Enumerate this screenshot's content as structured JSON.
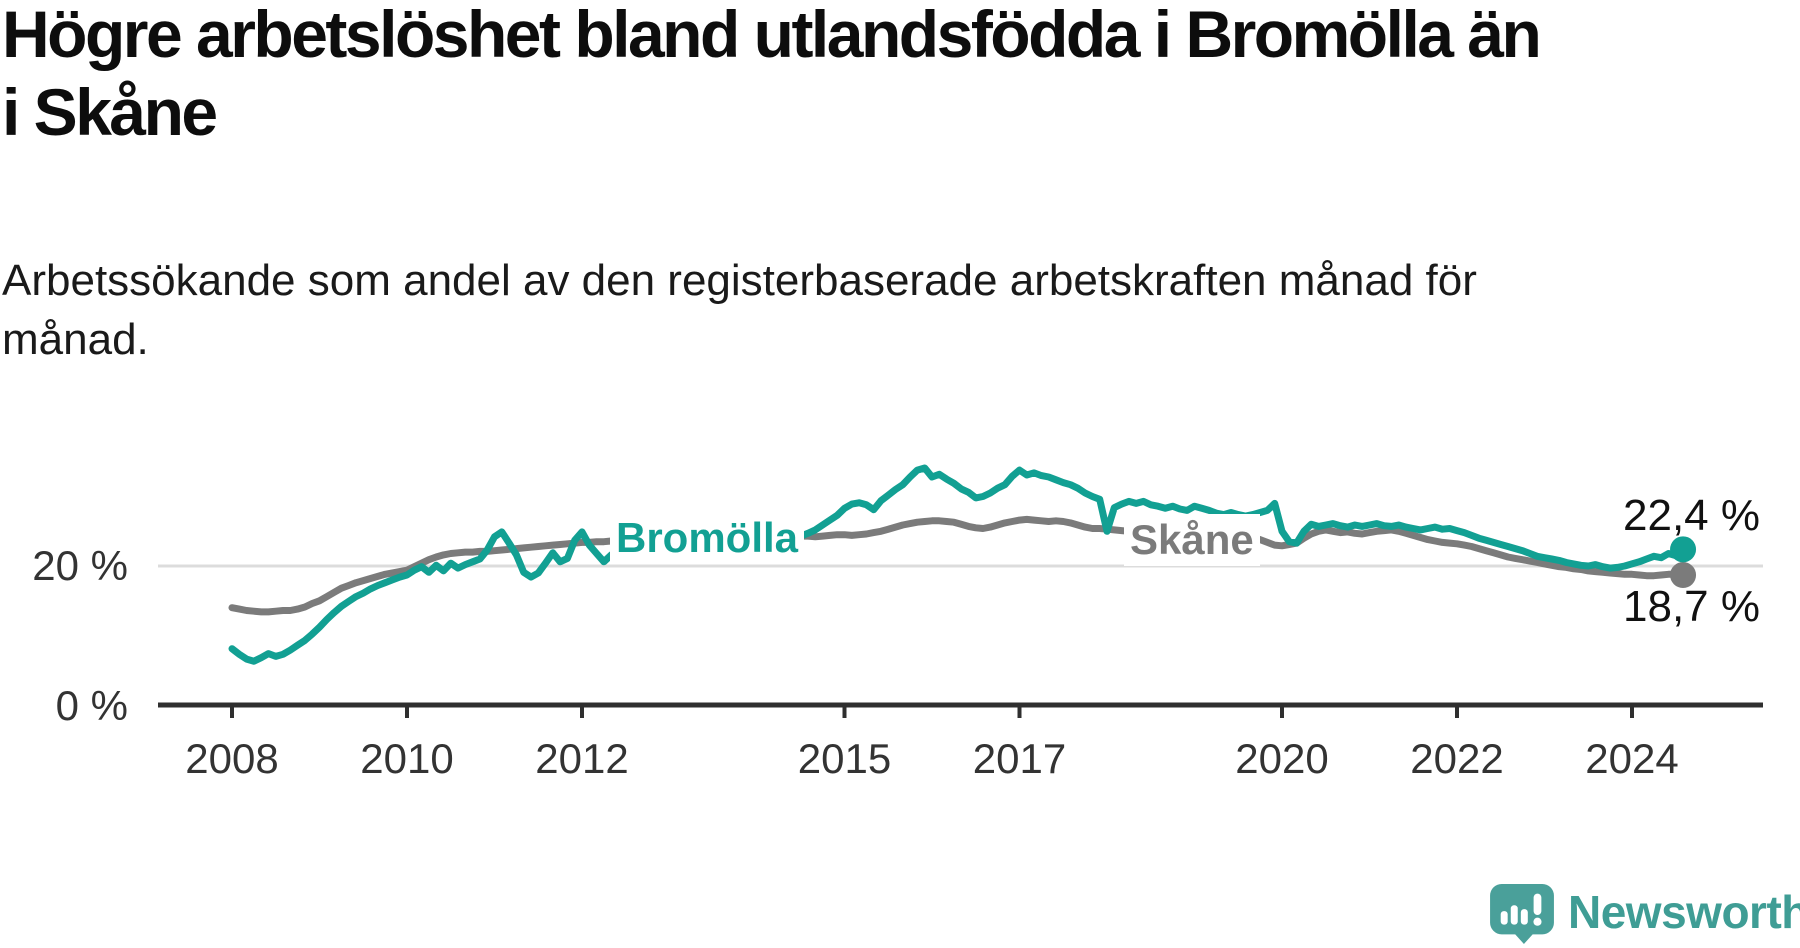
{
  "header": {
    "title": "Högre arbetslöshet bland utlandsfödda i Bromölla än\ni Skåne",
    "subtitle": "Arbetssökande som andel av den registerbaserade arbetskraften månad för\nmånad."
  },
  "logo": {
    "text": "Newsworthy",
    "icon": "speech-bubble-bar-chart",
    "color": "#3f9d95",
    "icon_color": "#4aa09a"
  },
  "chart_data": {
    "type": "line",
    "title": "Högre arbetslöshet bland utlandsfödda i Bromölla än i Skåne",
    "subtitle": "Arbetssökande som andel av den registerbaserade arbetskraften månad för månad.",
    "x_unit": "month",
    "start": "2008-01",
    "end": "2024-08",
    "x_ticks": [
      2008,
      2010,
      2012,
      2015,
      2017,
      2020,
      2022,
      2024
    ],
    "y_axis": {
      "ymin": 0,
      "ymax_visible": 35,
      "gridline_value": 20,
      "gridline_label": "20 %",
      "baseline_label": "0 %",
      "grid": "single-horizontal"
    },
    "legend_position": "inline-labels-on-lines",
    "colors": {
      "axis": "#2f2f2f",
      "gridline": "#dcdcdc",
      "tick_text": "#333333"
    },
    "series": [
      {
        "name": "Skåne",
        "color": "#7b7b7b",
        "end_label": "18,7 %",
        "end_value": 18.7,
        "values": [
          14.0,
          13.8,
          13.6,
          13.5,
          13.4,
          13.4,
          13.5,
          13.6,
          13.6,
          13.8,
          14.1,
          14.6,
          15.0,
          15.6,
          16.2,
          16.8,
          17.2,
          17.6,
          17.9,
          18.2,
          18.5,
          18.8,
          19.0,
          19.2,
          19.4,
          19.9,
          20.4,
          20.9,
          21.3,
          21.6,
          21.8,
          21.9,
          22.0,
          22.0,
          22.1,
          22.1,
          22.2,
          22.3,
          22.4,
          22.5,
          22.6,
          22.7,
          22.8,
          22.9,
          23.0,
          23.1,
          23.2,
          23.3,
          23.4,
          23.4,
          23.5,
          23.5,
          23.6,
          23.6,
          23.7,
          23.7,
          23.8,
          23.8,
          23.9,
          23.9,
          24.0,
          24.0,
          24.1,
          24.1,
          24.2,
          24.2,
          24.2,
          24.3,
          24.3,
          24.3,
          24.2,
          24.2,
          24.2,
          24.2,
          24.3,
          24.3,
          24.2,
          24.2,
          24.3,
          24.3,
          24.2,
          24.3,
          24.4,
          24.5,
          24.5,
          24.4,
          24.5,
          24.6,
          24.8,
          25.0,
          25.3,
          25.6,
          25.9,
          26.1,
          26.3,
          26.4,
          26.5,
          26.5,
          26.4,
          26.3,
          26.0,
          25.7,
          25.5,
          25.4,
          25.6,
          25.9,
          26.2,
          26.4,
          26.6,
          26.7,
          26.6,
          26.5,
          26.4,
          26.5,
          26.4,
          26.2,
          25.9,
          25.6,
          25.4,
          25.4,
          25.3,
          25.2,
          25.1,
          25.0,
          24.9,
          24.8,
          24.8,
          24.7,
          24.6,
          24.5,
          24.5,
          24.4,
          24.4,
          24.3,
          24.3,
          24.2,
          24.2,
          24.3,
          24.2,
          24.1,
          24.0,
          23.8,
          23.4,
          23.0,
          22.9,
          23.1,
          23.3,
          24.0,
          24.6,
          25.0,
          25.2,
          25.0,
          24.8,
          24.9,
          24.7,
          24.6,
          24.8,
          25.0,
          25.1,
          25.2,
          25.0,
          24.7,
          24.4,
          24.1,
          23.8,
          23.6,
          23.4,
          23.3,
          23.2,
          23.0,
          22.8,
          22.5,
          22.2,
          21.9,
          21.6,
          21.3,
          21.1,
          20.9,
          20.7,
          20.5,
          20.3,
          20.1,
          19.9,
          19.8,
          19.6,
          19.5,
          19.3,
          19.2,
          19.1,
          19.0,
          18.9,
          18.8,
          18.8,
          18.7,
          18.6,
          18.6,
          18.7,
          18.8,
          18.8,
          18.7
        ]
      },
      {
        "name": "Bromölla",
        "color": "#12a093",
        "end_label": "22,4 %",
        "end_value": 22.4,
        "values": [
          8.1,
          7.3,
          6.6,
          6.3,
          6.8,
          7.4,
          7.0,
          7.3,
          7.9,
          8.6,
          9.3,
          10.2,
          11.2,
          12.3,
          13.3,
          14.2,
          14.9,
          15.6,
          16.1,
          16.7,
          17.2,
          17.6,
          18.0,
          18.4,
          18.7,
          19.4,
          19.9,
          19.1,
          20.1,
          19.3,
          20.4,
          19.7,
          20.2,
          20.6,
          21.0,
          22.3,
          24.2,
          24.9,
          23.3,
          21.6,
          19.1,
          18.4,
          19.0,
          20.4,
          21.9,
          20.6,
          21.1,
          23.7,
          24.9,
          23.0,
          21.8,
          20.6,
          21.6,
          22.0,
          21.9,
          22.1,
          22.4,
          22.2,
          22.6,
          22.9,
          23.1,
          23.3,
          23.0,
          23.4,
          23.1,
          22.8,
          23.2,
          23.5,
          23.3,
          23.7,
          23.5,
          23.9,
          24.1,
          24.3,
          24.0,
          24.4,
          24.2,
          24.5,
          24.3,
          24.7,
          25.2,
          25.9,
          26.6,
          27.3,
          28.3,
          28.9,
          29.1,
          28.8,
          28.1,
          29.4,
          30.2,
          31.0,
          31.7,
          32.8,
          33.8,
          34.1,
          32.8,
          33.2,
          32.5,
          31.9,
          31.1,
          30.6,
          29.8,
          30.0,
          30.5,
          31.2,
          31.7,
          32.9,
          33.8,
          33.1,
          33.4,
          33.0,
          32.8,
          32.4,
          32.0,
          31.7,
          31.2,
          30.5,
          30.0,
          29.6,
          25.0,
          28.4,
          28.9,
          29.3,
          29.0,
          29.3,
          28.8,
          28.6,
          28.3,
          28.6,
          28.2,
          28.0,
          28.6,
          28.3,
          28.0,
          27.6,
          27.4,
          27.7,
          27.4,
          27.2,
          27.4,
          27.7,
          28.0,
          29.0,
          25.0,
          23.5,
          23.3,
          25.0,
          26.0,
          25.7,
          25.9,
          26.1,
          25.8,
          25.6,
          25.9,
          25.7,
          25.9,
          26.1,
          25.8,
          25.7,
          25.9,
          25.6,
          25.4,
          25.2,
          25.4,
          25.6,
          25.3,
          25.4,
          25.1,
          24.8,
          24.4,
          24.0,
          23.7,
          23.4,
          23.1,
          22.8,
          22.5,
          22.2,
          21.8,
          21.4,
          21.2,
          21.0,
          20.8,
          20.5,
          20.3,
          20.1,
          20.0,
          20.2,
          19.9,
          19.7,
          19.8,
          20.0,
          20.3,
          20.6,
          21.0,
          21.4,
          21.2,
          21.8,
          21.5,
          22.4
        ]
      }
    ]
  }
}
